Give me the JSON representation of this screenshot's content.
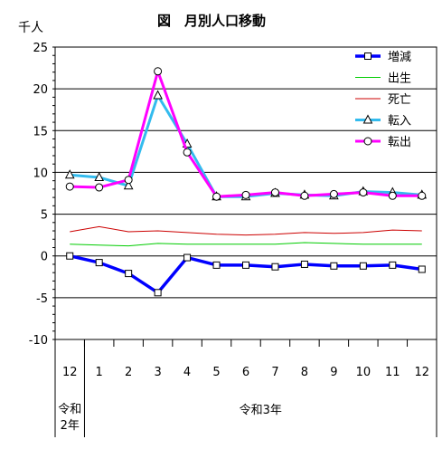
{
  "chart_data": {
    "type": "line",
    "title": "図　月別人口移動",
    "ylabel": "千人",
    "ylim": [
      -10,
      25
    ],
    "ytick_step": 5,
    "yticks": [
      "25",
      "20",
      "15",
      "10",
      "5",
      "0",
      "-5",
      "-10"
    ],
    "grid": true,
    "legend_position": "top-right",
    "categories": [
      "12",
      "1",
      "2",
      "3",
      "4",
      "5",
      "6",
      "7",
      "8",
      "9",
      "10",
      "11",
      "12"
    ],
    "year_groups": [
      {
        "label": "令和\n2年",
        "lines": [
          "令和",
          "2年"
        ],
        "span": 1
      },
      {
        "label": "令和3年",
        "lines": [
          "令和3年"
        ],
        "span": 12
      }
    ],
    "series": [
      {
        "name": "増減",
        "color": "#0000ff",
        "marker": "square",
        "values": [
          0.0,
          -0.8,
          -2.1,
          -4.4,
          -0.2,
          -1.1,
          -1.1,
          -1.3,
          -1.0,
          -1.2,
          -1.2,
          -1.1,
          -1.6
        ]
      },
      {
        "name": "出生",
        "color": "#00cc00",
        "marker": "none",
        "values": [
          1.4,
          1.3,
          1.2,
          1.5,
          1.4,
          1.4,
          1.4,
          1.4,
          1.6,
          1.5,
          1.4,
          1.4,
          1.4
        ]
      },
      {
        "name": "死亡",
        "color": "#cc0000",
        "marker": "none",
        "values": [
          2.9,
          3.5,
          2.9,
          3.0,
          2.8,
          2.6,
          2.5,
          2.6,
          2.8,
          2.7,
          2.8,
          3.1,
          3.0
        ]
      },
      {
        "name": "転入",
        "color": "#33bbee",
        "marker": "triangle",
        "values": [
          9.7,
          9.4,
          8.4,
          19.2,
          13.4,
          7.1,
          7.1,
          7.5,
          7.3,
          7.2,
          7.7,
          7.6,
          7.3
        ]
      },
      {
        "name": "転出",
        "color": "#ff00ff",
        "marker": "circle",
        "values": [
          8.3,
          8.2,
          9.1,
          22.1,
          12.4,
          7.1,
          7.3,
          7.6,
          7.2,
          7.4,
          7.6,
          7.2,
          7.2
        ]
      }
    ]
  }
}
